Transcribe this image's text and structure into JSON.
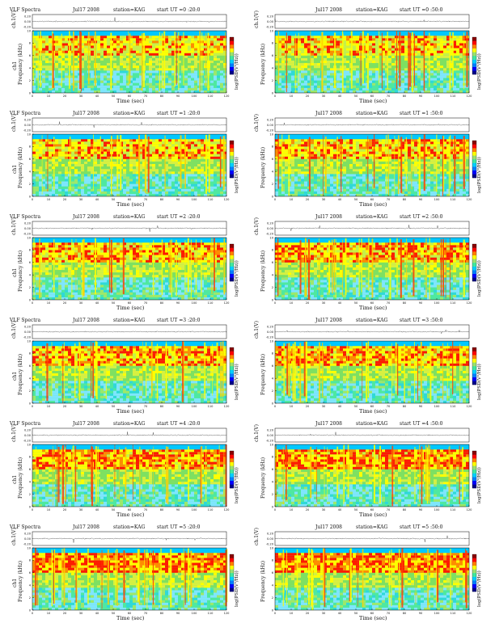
{
  "chart_data": [
    {
      "type": "heatmap",
      "title": "VLF Spectra",
      "date": "Jul17 2008",
      "station": "station=KAG",
      "start_label": "start  UT =0 :20:0",
      "top_ylabel": "ch.1(V)",
      "top_yticks": [
        "0.20",
        "0.00",
        "-0.20"
      ],
      "ylabel": "Frequency (kHz)",
      "ylabel_prefix": "ch1",
      "xlabel": "Time (sec)",
      "colorbar_label": "log(PSD(V²/Hz))",
      "xticks": [
        0,
        10,
        20,
        30,
        40,
        50,
        60,
        70,
        80,
        90,
        100,
        110,
        120
      ],
      "yticks": [
        0,
        2,
        4,
        6,
        8,
        10
      ],
      "xlim": [
        0,
        120
      ],
      "ylim": [
        0,
        10
      ]
    },
    {
      "type": "heatmap",
      "title": "",
      "date": "Jul17 2008",
      "station": "station=KAG",
      "start_label": "start  UT =0 :50:0",
      "top_ylabel": "ch.1(V)",
      "top_yticks": [
        "0.20",
        "0.00",
        "-0.20"
      ],
      "ylabel": "Frequency (kHz)",
      "ylabel_prefix": "",
      "xlabel": "Time (sec)",
      "colorbar_label": "log(PSD(V²/Hz))",
      "xticks": [
        0,
        10,
        20,
        30,
        40,
        50,
        60,
        70,
        80,
        90,
        100,
        110,
        120
      ],
      "yticks": [
        0,
        2,
        4,
        6,
        8,
        10
      ],
      "xlim": [
        0,
        120
      ],
      "ylim": [
        0,
        10
      ]
    },
    {
      "type": "heatmap",
      "title": "VLF Spectra",
      "date": "Jul17 2008",
      "station": "station=KAG",
      "start_label": "start  UT =1 :20:0",
      "top_ylabel": "ch.1(V)",
      "top_yticks": [
        "0.20",
        "0.00",
        "-0.20"
      ],
      "ylabel": "Frequency (kHz)",
      "ylabel_prefix": "ch1",
      "xlabel": "Time (sec)",
      "colorbar_label": "log(PSD(V²/Hz))",
      "xticks": [
        0,
        10,
        20,
        30,
        40,
        50,
        60,
        70,
        80,
        90,
        100,
        110,
        120
      ],
      "yticks": [
        0,
        2,
        4,
        6,
        8,
        10
      ],
      "xlim": [
        0,
        120
      ],
      "ylim": [
        0,
        10
      ]
    },
    {
      "type": "heatmap",
      "title": "",
      "date": "Jul17 2008",
      "station": "station=KAG",
      "start_label": "start  UT =1 :50:0",
      "top_ylabel": "ch.1(V)",
      "top_yticks": [
        "0.20",
        "0.00",
        "-0.20"
      ],
      "ylabel": "Frequency (kHz)",
      "ylabel_prefix": "",
      "xlabel": "Time (sec)",
      "colorbar_label": "log(PSD(V²/Hz))",
      "xticks": [
        0,
        10,
        20,
        30,
        40,
        50,
        60,
        70,
        80,
        90,
        100,
        110,
        120
      ],
      "yticks": [
        0,
        2,
        4,
        6,
        8,
        10
      ],
      "xlim": [
        0,
        120
      ],
      "ylim": [
        0,
        10
      ]
    },
    {
      "type": "heatmap",
      "title": "VLF Spectra",
      "date": "Jul17 2008",
      "station": "station=KAG",
      "start_label": "start  UT =2 :20:0",
      "top_ylabel": "ch.1(V)",
      "top_yticks": [
        "0.20",
        "0.00",
        "-0.20"
      ],
      "ylabel": "Frequency (kHz)",
      "ylabel_prefix": "ch1",
      "xlabel": "Time (sec)",
      "colorbar_label": "log(PSD(V²/Hz))",
      "xticks": [
        0,
        10,
        20,
        30,
        40,
        50,
        60,
        70,
        80,
        90,
        100,
        110,
        120
      ],
      "yticks": [
        0,
        2,
        4,
        6,
        8,
        10
      ],
      "xlim": [
        0,
        120
      ],
      "ylim": [
        0,
        10
      ]
    },
    {
      "type": "heatmap",
      "title": "",
      "date": "Jul17 2008",
      "station": "station=KAG",
      "start_label": "start  UT =2 :50:0",
      "top_ylabel": "ch.1(V)",
      "top_yticks": [
        "0.20",
        "0.00",
        "-0.20"
      ],
      "ylabel": "Frequency (kHz)",
      "ylabel_prefix": "",
      "xlabel": "Time (sec)",
      "colorbar_label": "log(PSD(V²/Hz))",
      "xticks": [
        0,
        10,
        20,
        30,
        40,
        50,
        60,
        70,
        80,
        90,
        100,
        110,
        120
      ],
      "yticks": [
        0,
        2,
        4,
        6,
        8,
        10
      ],
      "xlim": [
        0,
        120
      ],
      "ylim": [
        0,
        10
      ]
    },
    {
      "type": "heatmap",
      "title": "VLF Spectra",
      "date": "Jul17 2008",
      "station": "station=KAG",
      "start_label": "start  UT =3 :20:0",
      "top_ylabel": "ch.1(V)",
      "top_yticks": [
        "0.20",
        "0.00",
        "-0.20"
      ],
      "ylabel": "Frequency (kHz)",
      "ylabel_prefix": "ch1",
      "xlabel": "Time (sec)",
      "colorbar_label": "log(PSD(V²/Hz))",
      "xticks": [
        0,
        10,
        20,
        30,
        40,
        50,
        60,
        70,
        80,
        90,
        100,
        110,
        120
      ],
      "yticks": [
        0,
        2,
        4,
        6,
        8,
        10
      ],
      "xlim": [
        0,
        120
      ],
      "ylim": [
        0,
        10
      ]
    },
    {
      "type": "heatmap",
      "title": "",
      "date": "Jul17 2008",
      "station": "station=KAG",
      "start_label": "start  UT =3 :50:0",
      "top_ylabel": "ch.1(V)",
      "top_yticks": [
        "0.20",
        "0.00",
        "-0.20"
      ],
      "ylabel": "Frequency (kHz)",
      "ylabel_prefix": "",
      "xlabel": "Time (sec)",
      "colorbar_label": "log(PSD(V²/Hz))",
      "xticks": [
        0,
        10,
        20,
        30,
        40,
        50,
        60,
        70,
        80,
        90,
        100,
        110,
        120
      ],
      "yticks": [
        0,
        2,
        4,
        6,
        8,
        10
      ],
      "xlim": [
        0,
        120
      ],
      "ylim": [
        0,
        10
      ]
    },
    {
      "type": "heatmap",
      "title": "VLF Spectra",
      "date": "Jul17 2008",
      "station": "station=KAG",
      "start_label": "start  UT =4 :20:0",
      "top_ylabel": "ch.1(V)",
      "top_yticks": [
        "0.20",
        "0.00",
        "-0.20"
      ],
      "ylabel": "Frequency (kHz)",
      "ylabel_prefix": "ch1",
      "xlabel": "Time (sec)",
      "colorbar_label": "log(PSD(V²/Hz))",
      "xticks": [
        0,
        10,
        20,
        30,
        40,
        50,
        60,
        70,
        80,
        90,
        100,
        110,
        120
      ],
      "yticks": [
        0,
        2,
        4,
        6,
        8,
        10
      ],
      "xlim": [
        0,
        120
      ],
      "ylim": [
        0,
        10
      ]
    },
    {
      "type": "heatmap",
      "title": "",
      "date": "Jul17 2008",
      "station": "station=KAG",
      "start_label": "start  UT =4 :50:0",
      "top_ylabel": "ch.1(V)",
      "top_yticks": [
        "0.20",
        "0.00",
        "-0.20"
      ],
      "ylabel": "Frequency (kHz)",
      "ylabel_prefix": "",
      "xlabel": "Time (sec)",
      "colorbar_label": "log(PSD(V²/Hz))",
      "xticks": [
        0,
        10,
        20,
        30,
        40,
        50,
        60,
        70,
        80,
        90,
        100,
        110,
        120
      ],
      "yticks": [
        0,
        2,
        4,
        6,
        8,
        10
      ],
      "xlim": [
        0,
        120
      ],
      "ylim": [
        0,
        10
      ]
    },
    {
      "type": "heatmap",
      "title": "VLF Spectra",
      "date": "Jul17 2008",
      "station": "station=KAG",
      "start_label": "start  UT =5 :20:0",
      "top_ylabel": "ch.1(V)",
      "top_yticks": [
        "0.20",
        "0.00",
        "-0.20"
      ],
      "ylabel": "Frequency (kHz)",
      "ylabel_prefix": "ch1",
      "xlabel": "Time (sec)",
      "colorbar_label": "log(PSD(V²/Hz))",
      "xticks": [
        0,
        10,
        20,
        30,
        40,
        50,
        60,
        70,
        80,
        90,
        100,
        110,
        120
      ],
      "yticks": [
        0,
        2,
        4,
        6,
        8,
        10
      ],
      "xlim": [
        0,
        120
      ],
      "ylim": [
        0,
        10
      ]
    },
    {
      "type": "heatmap",
      "title": "",
      "date": "Jul17 2008",
      "station": "station=KAG",
      "start_label": "start  UT =5 :50:0",
      "top_ylabel": "ch.1(V)",
      "top_yticks": [
        "0.20",
        "0.00",
        "-0.20"
      ],
      "ylabel": "Frequency (kHz)",
      "ylabel_prefix": "",
      "xlabel": "Time (sec)",
      "colorbar_label": "log(PSD(V²/Hz))",
      "xticks": [
        0,
        10,
        20,
        30,
        40,
        50,
        60,
        70,
        80,
        90,
        100,
        110,
        120
      ],
      "yticks": [
        0,
        2,
        4,
        6,
        8,
        10
      ],
      "xlim": [
        0,
        120
      ],
      "ylim": [
        0,
        10
      ]
    }
  ],
  "colors": {
    "colormap": [
      "#00008b",
      "#0000ff",
      "#0080ff",
      "#00d0ff",
      "#3fe8a0",
      "#9be070",
      "#ffff00",
      "#ff8000",
      "#ff0000",
      "#8b0000"
    ],
    "background_band": "#00c8ff"
  }
}
